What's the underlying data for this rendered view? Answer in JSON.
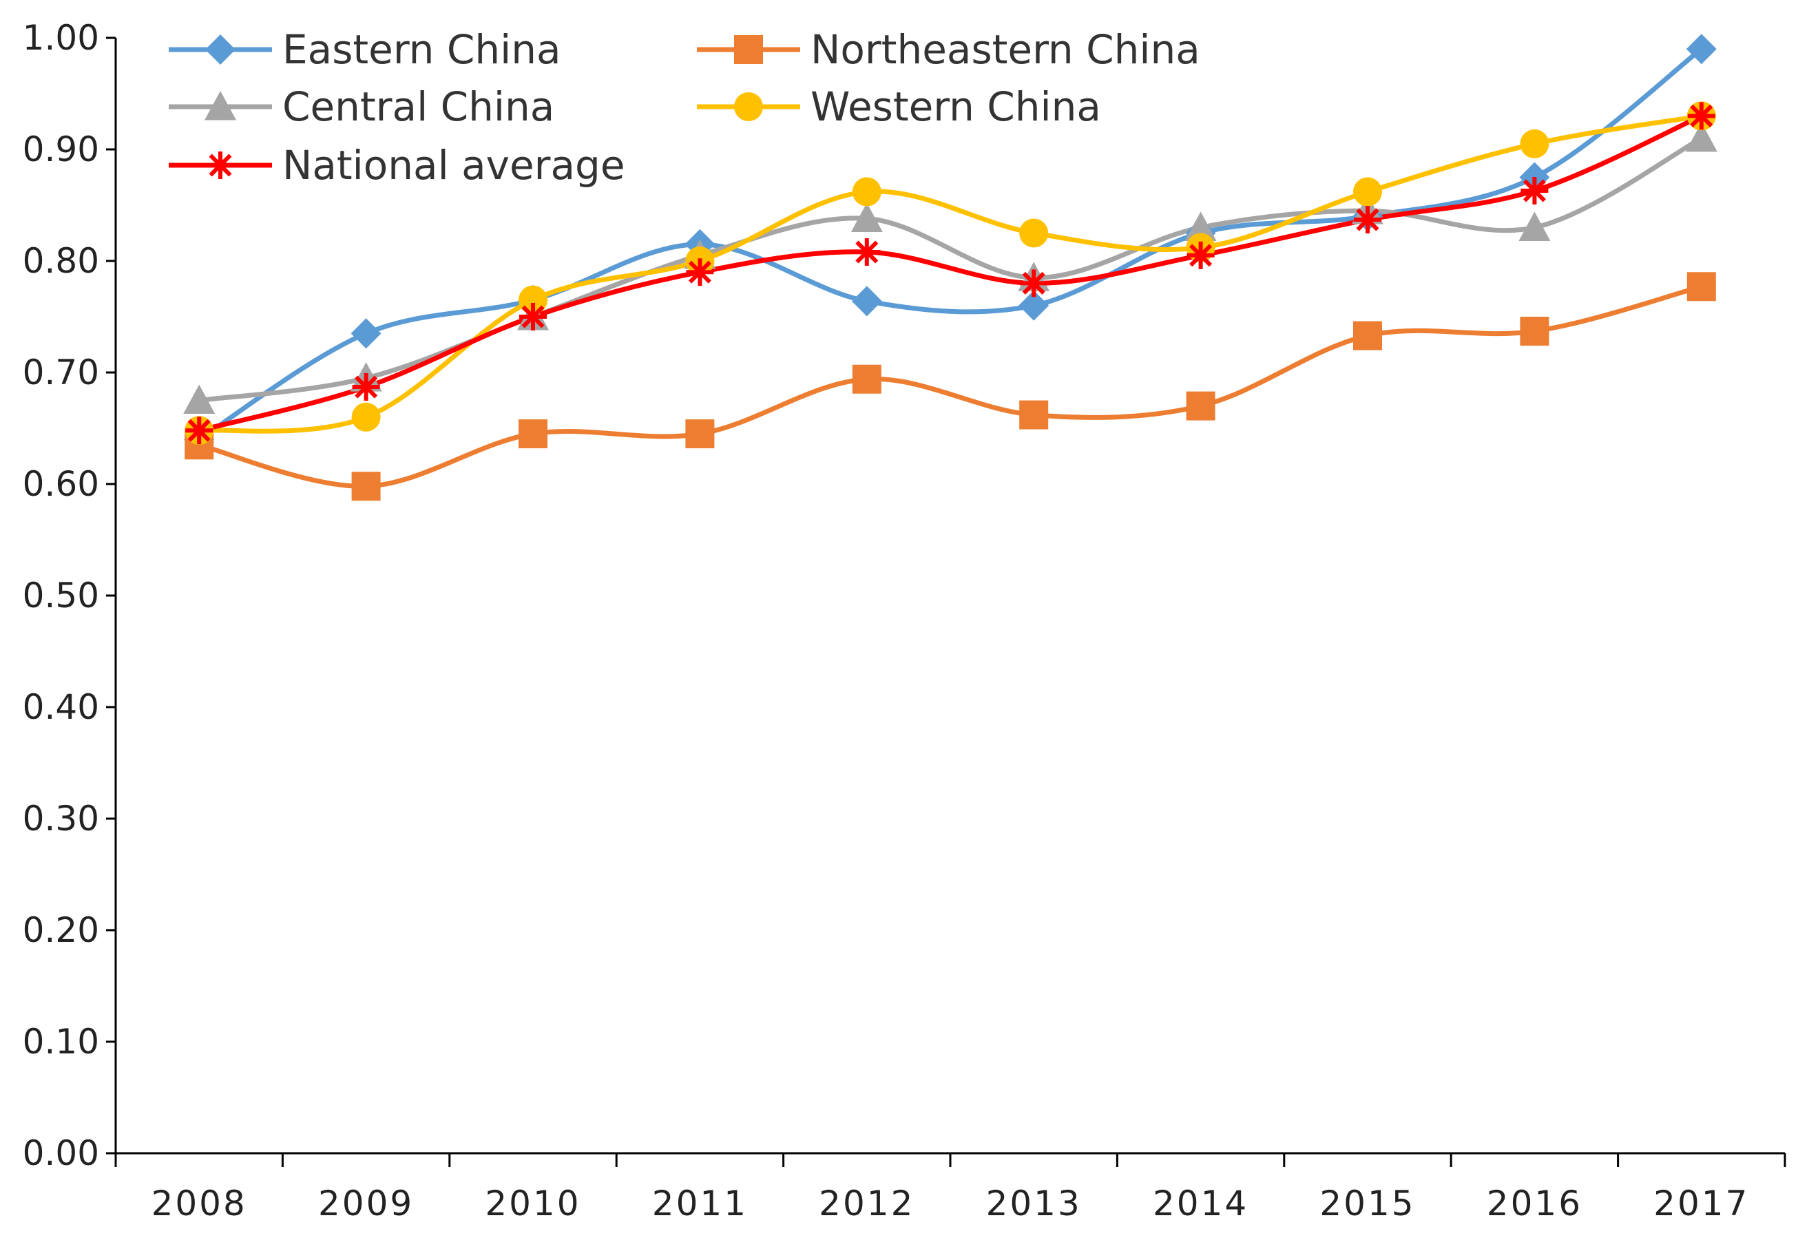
{
  "chart_data": {
    "type": "line",
    "title": "",
    "xlabel": "",
    "ylabel": "",
    "ylim": [
      0,
      1.0
    ],
    "y_ticks": [
      "0.00",
      "0.10",
      "0.20",
      "0.30",
      "0.40",
      "0.50",
      "0.60",
      "0.70",
      "0.80",
      "0.90",
      "1.00"
    ],
    "categories": [
      "2008",
      "2009",
      "2010",
      "2011",
      "2012",
      "2013",
      "2014",
      "2015",
      "2016",
      "2017"
    ],
    "legend_position": "top-left",
    "grid": false,
    "series": [
      {
        "name": "Eastern China",
        "color": "#5B9BD5",
        "marker": "diamond",
        "values": [
          0.64,
          0.735,
          0.765,
          0.815,
          0.764,
          0.76,
          0.825,
          0.84,
          0.875,
          0.99
        ]
      },
      {
        "name": "Northeastern China",
        "color": "#ED7D31",
        "marker": "square",
        "values": [
          0.635,
          0.598,
          0.645,
          0.645,
          0.694,
          0.662,
          0.67,
          0.733,
          0.737,
          0.777
        ]
      },
      {
        "name": "Central China",
        "color": "#A5A5A5",
        "marker": "triangle",
        "values": [
          0.675,
          0.695,
          0.75,
          0.805,
          0.838,
          0.785,
          0.83,
          0.845,
          0.83,
          0.91
        ]
      },
      {
        "name": "Western China",
        "color": "#FFC000",
        "marker": "circle",
        "values": [
          0.648,
          0.66,
          0.765,
          0.8,
          0.862,
          0.825,
          0.812,
          0.862,
          0.905,
          0.93
        ]
      },
      {
        "name": "National average",
        "color": "#FF0000",
        "marker": "asterisk",
        "values": [
          0.648,
          0.687,
          0.75,
          0.79,
          0.808,
          0.78,
          0.805,
          0.837,
          0.863,
          0.93
        ]
      }
    ]
  }
}
